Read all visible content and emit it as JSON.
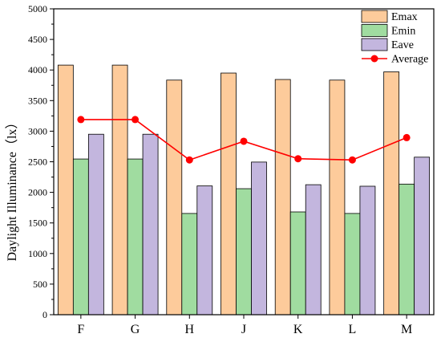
{
  "chart_data": {
    "type": "bar",
    "categories": [
      "F",
      "G",
      "H",
      "J",
      "K",
      "L",
      "M"
    ],
    "series": [
      {
        "name": "Emax",
        "kind": "bar",
        "color": "#FDCB9B",
        "values": [
          4080,
          4080,
          3835,
          3950,
          3845,
          3835,
          3970
        ]
      },
      {
        "name": "Emin",
        "kind": "bar",
        "color": "#A0DCA0",
        "values": [
          2545,
          2545,
          1655,
          2060,
          1680,
          1655,
          2135
        ]
      },
      {
        "name": "Eave",
        "kind": "bar",
        "color": "#C3B6DE",
        "values": [
          2950,
          2950,
          2105,
          2495,
          2125,
          2100,
          2575
        ]
      },
      {
        "name": "Average",
        "kind": "line",
        "color": "#FF0000",
        "values": [
          3190,
          3190,
          2530,
          2835,
          2550,
          2530,
          2895
        ]
      }
    ],
    "ylabel": "Daylight Illuminance（lx）",
    "xlabel": "",
    "ylim": [
      0,
      5000
    ],
    "yticks": [
      0,
      500,
      1000,
      1500,
      2000,
      2500,
      3000,
      3500,
      4000,
      4500,
      5000
    ],
    "legend_position": "top-right",
    "grid": false
  }
}
